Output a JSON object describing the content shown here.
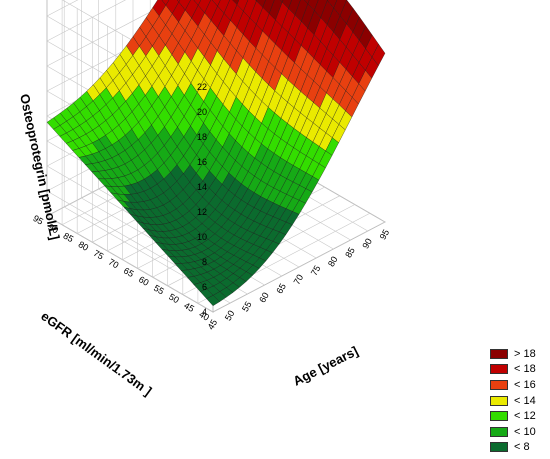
{
  "chart_data": {
    "type": "surface",
    "title": "",
    "xlabel": "Age [years]",
    "ylabel": "eGFR [ml/min/1.73m  ]",
    "zlabel": "Osteoprotegrin [pmol/L]",
    "x_ticks": [
      "45",
      "50",
      "55",
      "60",
      "65",
      "70",
      "75",
      "80",
      "85",
      "90",
      "95"
    ],
    "y_ticks": [
      "40",
      "45",
      "50",
      "55",
      "60",
      "65",
      "70",
      "75",
      "80",
      "85",
      "90",
      "95"
    ],
    "z_ticks": [
      "4",
      "6",
      "8",
      "10",
      "12",
      "14",
      "16",
      "18",
      "20",
      "22"
    ],
    "xlim": [
      45,
      95
    ],
    "ylim": [
      40,
      95
    ],
    "zlim": [
      4,
      22
    ],
    "surface_corners": [
      {
        "age": 45,
        "egfr": 95,
        "osteoprotegrin": 11.5
      },
      {
        "age": 45,
        "egfr": 40,
        "osteoprotegrin": 4.5
      },
      {
        "age": 95,
        "egfr": 40,
        "osteoprotegrin": 17.5
      },
      {
        "age": 95,
        "egfr": 95,
        "osteoprotegrin": 22
      }
    ],
    "grid": true,
    "legend_position": "bottom-right",
    "legend": [
      {
        "label": "> 18",
        "color": "#8b0000"
      },
      {
        "label": "< 18",
        "color": "#c00000"
      },
      {
        "label": "< 16",
        "color": "#e84010"
      },
      {
        "label": "< 14",
        "color": "#eaea00"
      },
      {
        "label": "< 12",
        "color": "#33dd00"
      },
      {
        "label": "< 10",
        "color": "#16aa16"
      },
      {
        "label": "< 8",
        "color": "#0b6b2e"
      }
    ]
  }
}
